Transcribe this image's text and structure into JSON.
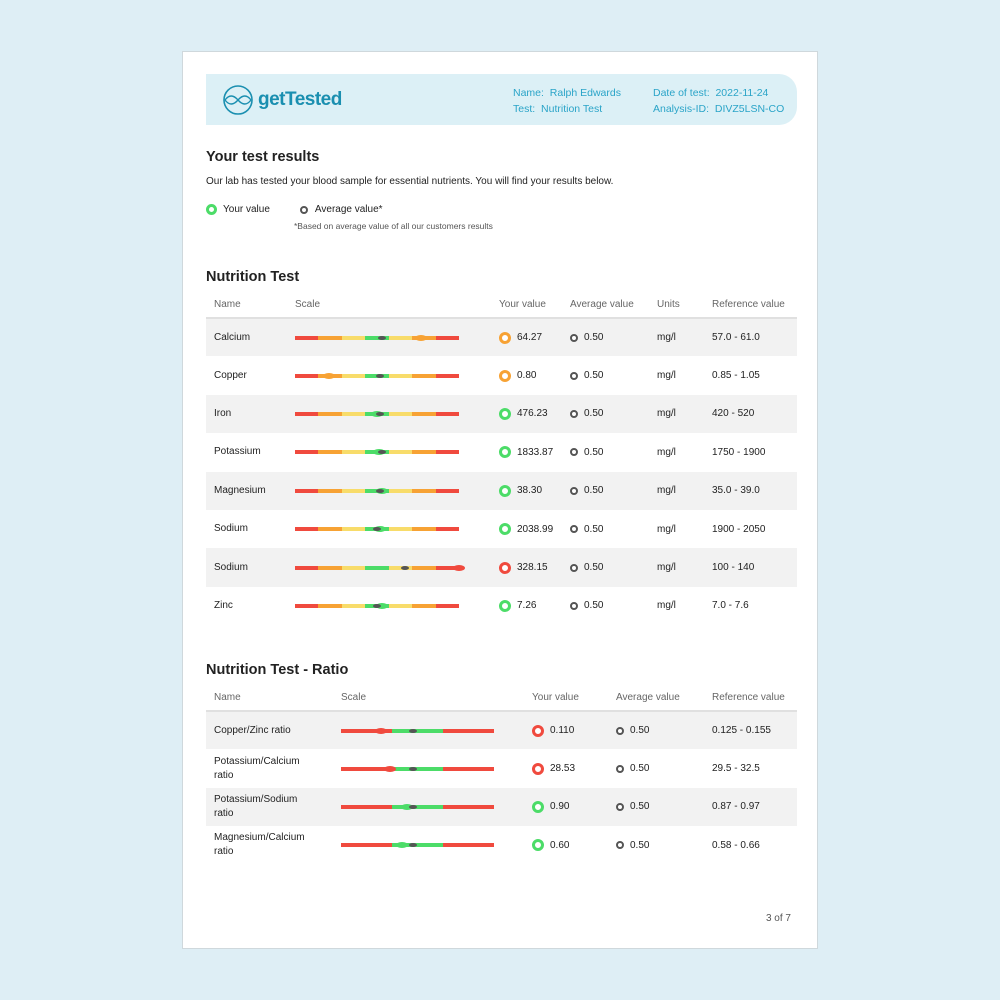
{
  "header": {
    "brand": "getTested",
    "name_label": "Name:",
    "name": "Ralph Edwards",
    "test_label": "Test:",
    "test": "Nutrition Test",
    "date_label": "Date of test:",
    "date": "2022-11-24",
    "analysis_label": "Analysis-ID:",
    "analysis_id": "DIVZ5LSN-CO"
  },
  "intro": {
    "title": "Your test results",
    "text": "Our lab has tested your blood sample for essential nutrients. You will find your results below.",
    "legend_your": "Your value",
    "legend_avg": "Average value*",
    "note": "*Based on average value of all our customers results"
  },
  "colors": {
    "red": "#f04a3e",
    "orange": "#f7a234",
    "yellow": "#f8dc6a",
    "green": "#4cdc68",
    "brand": "#1a8fb0"
  },
  "nutrition": {
    "title": "Nutrition Test",
    "columns": [
      "Name",
      "Scale",
      "Your value",
      "Average value",
      "Units",
      "Reference value"
    ],
    "rows": [
      {
        "name": "Calcium",
        "your": "64.27",
        "avg": "0.50",
        "units": "mg/l",
        "ref": "57.0 - 61.0",
        "status": "orange",
        "your_pos": 0.77,
        "avg_pos": 0.53
      },
      {
        "name": "Copper",
        "your": "0.80",
        "avg": "0.50",
        "units": "mg/l",
        "ref": "0.85 - 1.05",
        "status": "orange",
        "your_pos": 0.21,
        "avg_pos": 0.52
      },
      {
        "name": "Iron",
        "your": "476.23",
        "avg": "0.50",
        "units": "mg/l",
        "ref": "420 - 520",
        "status": "green",
        "your_pos": 0.5,
        "avg_pos": 0.52
      },
      {
        "name": "Potassium",
        "your": "1833.87",
        "avg": "0.50",
        "units": "mg/l",
        "ref": "1750 - 1900",
        "status": "green",
        "your_pos": 0.51,
        "avg_pos": 0.53
      },
      {
        "name": "Magnesium",
        "your": "38.30",
        "avg": "0.50",
        "units": "mg/l",
        "ref": "35.0 - 39.0",
        "status": "green",
        "your_pos": 0.53,
        "avg_pos": 0.52
      },
      {
        "name": "Sodium",
        "your": "2038.99",
        "avg": "0.50",
        "units": "mg/l",
        "ref": "1900 - 2050",
        "status": "green",
        "your_pos": 0.52,
        "avg_pos": 0.5
      },
      {
        "name": "Sodium",
        "your": "328.15",
        "avg": "0.50",
        "units": "mg/l",
        "ref": "100 - 140",
        "status": "red",
        "your_pos": 1.0,
        "avg_pos": 0.67
      },
      {
        "name": "Zinc",
        "your": "7.26",
        "avg": "0.50",
        "units": "mg/l",
        "ref": "7.0 - 7.6",
        "status": "green",
        "your_pos": 0.53,
        "avg_pos": 0.5
      }
    ]
  },
  "ratio": {
    "title": "Nutrition Test - Ratio",
    "columns": [
      "Name",
      "Scale",
      "Your value",
      "Average value",
      "Reference value"
    ],
    "rows": [
      {
        "name": "Copper/Zinc ratio",
        "your": "0.110",
        "avg": "0.50",
        "ref": "0.125 - 0.155",
        "status": "red",
        "your_pos": 0.26,
        "avg_pos": 0.47
      },
      {
        "name": "Potassium/Calcium ratio",
        "your": "28.53",
        "avg": "0.50",
        "ref": "29.5 - 32.5",
        "status": "red",
        "your_pos": 0.32,
        "avg_pos": 0.47
      },
      {
        "name": "Potassium/Sodium ratio",
        "your": "0.90",
        "avg": "0.50",
        "ref": "0.87 - 0.97",
        "status": "green",
        "your_pos": 0.43,
        "avg_pos": 0.47
      },
      {
        "name": "Magnesium/Calcium ratio",
        "your": "0.60",
        "avg": "0.50",
        "ref": "0.58 - 0.66",
        "status": "green",
        "your_pos": 0.4,
        "avg_pos": 0.47
      }
    ]
  },
  "footer": {
    "page": "3 of 7"
  }
}
